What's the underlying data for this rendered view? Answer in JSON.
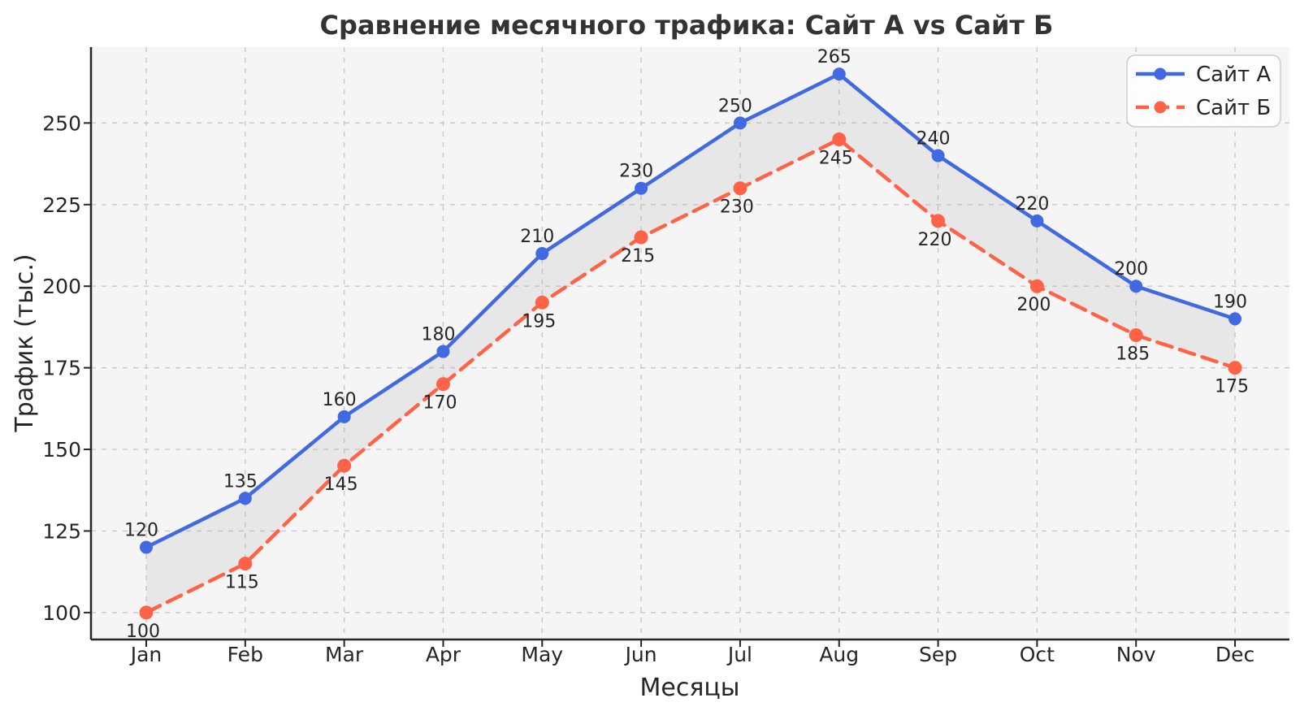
{
  "chart_data": {
    "type": "line",
    "title": "Сравнение месячного трафика: Сайт А vs Сайт Б",
    "xlabel": "Месяцы",
    "ylabel": "Трафик (тыс.)",
    "categories": [
      "Jan",
      "Feb",
      "Mar",
      "Apr",
      "May",
      "Jun",
      "Jul",
      "Aug",
      "Sep",
      "Oct",
      "Nov",
      "Dec"
    ],
    "series": [
      {
        "name": "Сайт А",
        "color": "#4169E1",
        "line_style": "solid",
        "values": [
          120,
          135,
          160,
          180,
          210,
          230,
          250,
          265,
          240,
          220,
          200,
          190
        ]
      },
      {
        "name": "Сайт Б",
        "color": "#FF6347",
        "line_style": "dashed",
        "values": [
          100,
          115,
          145,
          170,
          195,
          215,
          230,
          245,
          220,
          200,
          185,
          175
        ]
      }
    ],
    "yticks": [
      100,
      125,
      150,
      175,
      200,
      225,
      250
    ],
    "ylim": [
      91.75,
      273.25
    ],
    "grid": true,
    "grid_style": "dashed",
    "legend_position": "upper right",
    "fill_between": true,
    "data_labels": true
  },
  "style_colors": {
    "figure_background": "#ffffff",
    "plot_background": "#f5f5f5",
    "grid_color": "#c9c9c9",
    "spine_color": "#262626",
    "annotation_color": "#1a1a1a",
    "fill_between_color": "#999999",
    "legend_border": "#cccccc",
    "legend_background": "#fefefe"
  }
}
